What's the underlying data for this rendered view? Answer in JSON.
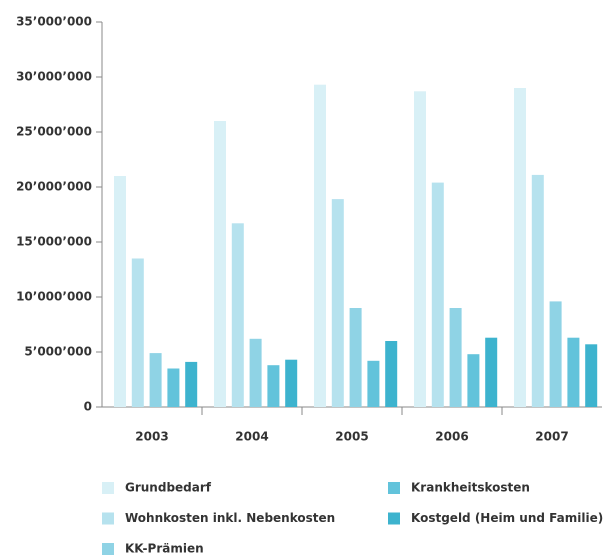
{
  "chart_data": {
    "type": "bar",
    "categories": [
      "2003",
      "2004",
      "2005",
      "2006",
      "2007"
    ],
    "series": [
      {
        "name": "Grundbedarf",
        "color": "#d8f0f6",
        "values": [
          21000000,
          26000000,
          29300000,
          28700000,
          29000000
        ]
      },
      {
        "name": "Wohnkosten inkl. Nebenkosten",
        "color": "#b6e2ee",
        "values": [
          13500000,
          16700000,
          18900000,
          20400000,
          21100000
        ]
      },
      {
        "name": "KK-Prämien",
        "color": "#8fd3e5",
        "values": [
          4900000,
          6200000,
          9000000,
          9000000,
          9600000
        ]
      },
      {
        "name": "Krankheitskosten",
        "color": "#62c3db",
        "values": [
          3500000,
          3800000,
          4200000,
          4800000,
          6300000
        ]
      },
      {
        "name": "Kostgeld (Heim und Familie)",
        "color": "#3db3ce",
        "values": [
          4100000,
          4300000,
          6000000,
          6300000,
          5700000
        ]
      }
    ],
    "ylim": [
      0,
      35000000
    ],
    "yticks": [
      0,
      {
        "value": 5000000,
        "label": "5’000’000"
      },
      {
        "value": 10000000,
        "label": "10’000’000"
      },
      {
        "value": 15000000,
        "label": "15’000’000"
      },
      {
        "value": 20000000,
        "label": "20’000’000"
      },
      {
        "value": 25000000,
        "label": "25’000’000"
      },
      {
        "value": 30000000,
        "label": "30’000’000"
      },
      {
        "value": 35000000,
        "label": "35’000’000"
      }
    ],
    "grid": false
  }
}
